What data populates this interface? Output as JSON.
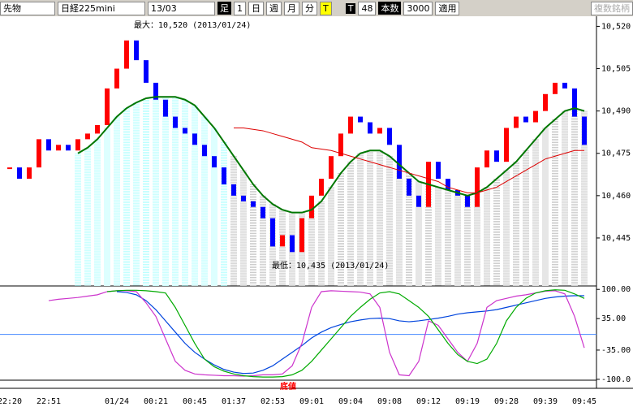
{
  "toolbar": {
    "market": "先物",
    "symbol": "日経225mini",
    "contract": "13/03",
    "bar_label": "足",
    "bar_size": "1",
    "periods": [
      "日",
      "週",
      "月",
      "分"
    ],
    "t_button": "T",
    "t_label": "T",
    "t_value": "48",
    "count_label": "本数",
    "count_value": "3000",
    "apply": "適用",
    "multi": "複数銘柄"
  },
  "chart_data": [
    {
      "type": "candlestick",
      "up_color": "#ff0000",
      "down_color": "#0000ff",
      "annotations": {
        "max": "最大：10,520 (2013/01/24)",
        "min": "最低：10,435 (2013/01/24)"
      },
      "categories": [
        "22:20",
        null,
        null,
        null,
        "22:51",
        null,
        null,
        null,
        null,
        null,
        null,
        "01/24",
        null,
        null,
        null,
        "00:21",
        null,
        null,
        null,
        "00:45",
        null,
        null,
        null,
        "01:37",
        null,
        null,
        null,
        "02:53",
        null,
        null,
        null,
        "09:01",
        null,
        null,
        null,
        "09:04",
        null,
        null,
        null,
        "09:08",
        null,
        null,
        null,
        "09:12",
        null,
        null,
        null,
        "09:19",
        null,
        null,
        null,
        "09:28",
        null,
        null,
        null,
        "09:39",
        null,
        null,
        null,
        "09:45"
      ],
      "values": [
        10470,
        10466,
        10470,
        10480,
        10476,
        10478,
        10476,
        10480,
        10482,
        10485,
        10498,
        10505,
        10515,
        10508,
        10500,
        10494,
        10488,
        10484,
        10482,
        10478,
        10474,
        10470,
        10464,
        10460,
        10458,
        10456,
        10452,
        10442,
        10446,
        10440,
        10452,
        10460,
        10466,
        10474,
        10482,
        10488,
        10486,
        10482,
        10484,
        10478,
        10466,
        10460,
        10456,
        10472,
        10466,
        10462,
        10460,
        10456,
        10470,
        10476,
        10472,
        10484,
        10488,
        10486,
        10490,
        10496,
        10500,
        10498,
        10488,
        10478
      ],
      "series": [
        {
          "color": "#007700",
          "values": [
            null,
            null,
            null,
            null,
            null,
            null,
            null,
            10475,
            10477,
            10480,
            10484,
            10488,
            10491,
            10493,
            10494.5,
            10495,
            10495,
            10495,
            10494,
            10492,
            10488,
            10484,
            10479,
            10474,
            10469,
            10464,
            10460,
            10457,
            10455,
            10454,
            10454,
            10455,
            10458,
            10463,
            10468,
            10472,
            10475,
            10476,
            10476,
            10474,
            10471,
            10468,
            10465,
            10464,
            10463,
            10462,
            10461,
            10460,
            10461,
            10463,
            10466,
            10469,
            10472,
            10476,
            10480,
            10484,
            10487,
            10490,
            10491,
            10490
          ]
        },
        {
          "color": "#dd0000",
          "values": [
            null,
            null,
            null,
            null,
            null,
            null,
            null,
            null,
            null,
            null,
            null,
            null,
            null,
            null,
            null,
            null,
            null,
            null,
            null,
            null,
            null,
            null,
            null,
            10484,
            10484,
            10483.5,
            10483,
            10482,
            10481,
            10480,
            10479,
            10477,
            10476.5,
            10476,
            10475,
            10474,
            10473,
            10472,
            10471,
            10470,
            10469,
            10468,
            10467,
            10466,
            10465,
            10463,
            10462,
            10461,
            10461,
            10462,
            10463,
            10465,
            10467,
            10469,
            10471,
            10473,
            10474,
            10475,
            10476,
            10476
          ]
        }
      ],
      "ylim": [
        10428,
        10523
      ],
      "yticks": [
        {
          "value": 10520,
          "label": "10,520"
        },
        {
          "value": 10505,
          "label": "10,505"
        },
        {
          "value": 10490,
          "label": "10,490"
        },
        {
          "value": 10475,
          "label": "10,475"
        },
        {
          "value": 10460,
          "label": "10,460"
        },
        {
          "value": 10445,
          "label": "10,445"
        }
      ]
    },
    {
      "type": "line",
      "annotation": "底値",
      "series": [
        {
          "color": "#0044dd",
          "values": [
            null,
            null,
            null,
            null,
            null,
            null,
            null,
            null,
            null,
            null,
            null,
            95,
            93,
            88,
            75,
            55,
            30,
            5,
            -20,
            -40,
            -55,
            -68,
            -78,
            -84,
            -87,
            -86,
            -80,
            -70,
            -55,
            -40,
            -25,
            -8,
            5,
            15,
            22,
            28,
            32,
            35,
            36,
            35,
            30,
            28,
            30,
            33,
            36,
            40,
            45,
            48,
            50,
            52,
            55,
            60,
            65,
            70,
            75,
            80,
            83,
            85,
            86,
            86
          ]
        },
        {
          "color": "#cc33cc",
          "values": [
            null,
            null,
            null,
            null,
            75,
            78,
            80,
            82,
            85,
            88,
            95,
            97,
            97,
            95,
            70,
            40,
            -10,
            -60,
            -80,
            -88,
            -90,
            -91,
            -92,
            -92,
            -93,
            -92,
            -90,
            -90,
            -88,
            -70,
            -20,
            60,
            95,
            97,
            96,
            95,
            94,
            90,
            60,
            -40,
            -90,
            -92,
            -60,
            30,
            20,
            -10,
            -40,
            -60,
            -20,
            60,
            75,
            80,
            85,
            88,
            92,
            96,
            97,
            90,
            40,
            -30
          ]
        },
        {
          "color": "#00aa00",
          "values": [
            null,
            null,
            null,
            null,
            null,
            null,
            null,
            null,
            null,
            null,
            95,
            97,
            98,
            98,
            97,
            95,
            92,
            60,
            20,
            -20,
            -55,
            -72,
            -82,
            -88,
            -92,
            -94,
            -95,
            -95,
            -94,
            -90,
            -80,
            -60,
            -35,
            -10,
            15,
            40,
            60,
            78,
            92,
            95,
            90,
            75,
            60,
            40,
            10,
            -20,
            -45,
            -60,
            -65,
            -55,
            -20,
            30,
            60,
            80,
            92,
            97,
            99,
            98,
            90,
            80
          ]
        }
      ],
      "ylim": [
        -120,
        104
      ],
      "yticks": [
        {
          "value": 100,
          "label": "100.00"
        },
        {
          "value": 35,
          "label": "35.00"
        },
        {
          "value": -35,
          "label": "-35.00"
        },
        {
          "value": -100,
          "label": "-100.0"
        }
      ]
    }
  ]
}
